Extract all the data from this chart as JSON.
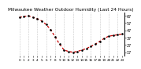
{
  "title": "Milwaukee Weather Outdoor Humidity (Last 24 Hours)",
  "y_values": [
    65,
    66,
    67,
    65,
    63,
    60,
    55,
    48,
    38,
    28,
    20,
    18,
    17,
    18,
    20,
    22,
    25,
    28,
    32,
    36,
    39,
    40,
    41,
    42
  ],
  "ylim": [
    12,
    72
  ],
  "yticks": [
    17,
    27,
    37,
    47,
    57,
    67
  ],
  "line_color": "#cc0000",
  "marker_color": "#000000",
  "bg_color": "#ffffff",
  "grid_color": "#999999",
  "title_fontsize": 4.2,
  "tick_fontsize": 3.5
}
